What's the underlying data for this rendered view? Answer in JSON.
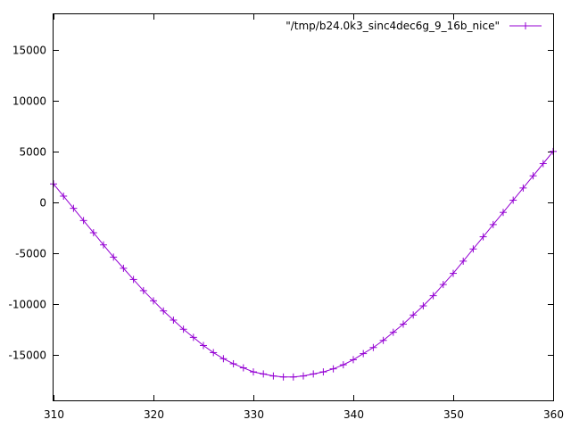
{
  "chart_data": {
    "type": "line",
    "title": "",
    "xlabel": "",
    "ylabel": "",
    "xlim": [
      310,
      360
    ],
    "ylim": [
      -19500,
      18500
    ],
    "xticks": [
      310,
      320,
      330,
      340,
      350,
      360
    ],
    "yticks": [
      15000,
      10000,
      5000,
      0,
      -5000,
      -10000,
      -15000
    ],
    "grid": false,
    "legend_position": "top-right",
    "series": [
      {
        "name": "\"/tmp/b24.0k3_sinc4dec6g_9_16b_nice\"",
        "color": "#9400d3",
        "marker": "plus",
        "x": [
          310,
          311,
          312,
          313,
          314,
          315,
          316,
          317,
          318,
          319,
          320,
          321,
          322,
          323,
          324,
          325,
          326,
          327,
          328,
          329,
          330,
          331,
          332,
          333,
          334,
          335,
          336,
          337,
          338,
          339,
          340,
          341,
          342,
          343,
          344,
          345,
          346,
          347,
          348,
          349,
          350,
          351,
          352,
          353,
          354,
          355,
          356,
          357,
          358,
          359,
          360
        ],
        "y": [
          1800,
          600,
          -600,
          -1800,
          -3000,
          -4200,
          -5400,
          -6500,
          -7600,
          -8700,
          -9700,
          -10700,
          -11600,
          -12500,
          -13300,
          -14100,
          -14800,
          -15400,
          -15900,
          -16300,
          -16700,
          -16900,
          -17100,
          -17200,
          -17200,
          -17100,
          -16900,
          -16700,
          -16400,
          -16000,
          -15500,
          -14900,
          -14300,
          -13600,
          -12800,
          -12000,
          -11100,
          -10200,
          -9200,
          -8100,
          -7000,
          -5800,
          -4600,
          -3400,
          -2200,
          -1000,
          200,
          1400,
          2600,
          3800,
          5000
        ]
      }
    ]
  }
}
